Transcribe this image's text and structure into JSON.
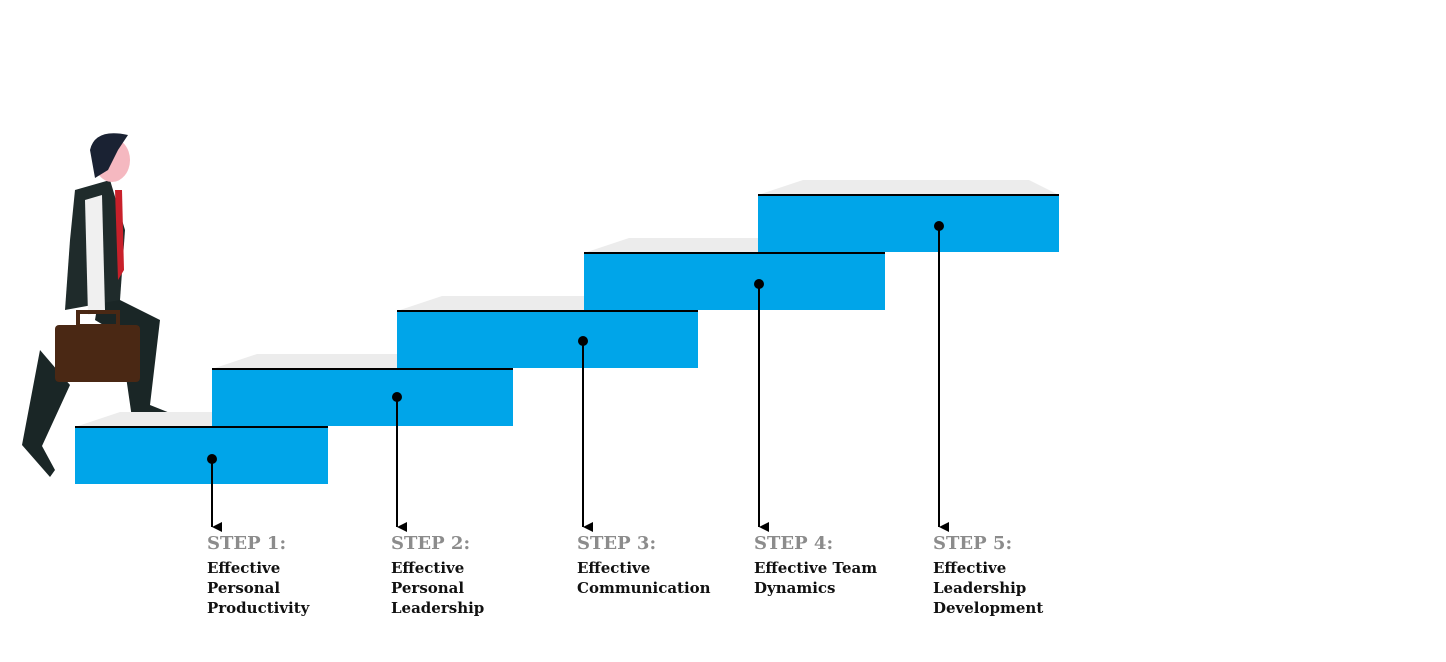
{
  "steps": [
    {
      "label": "STEP 1:",
      "lines": [
        "Effective",
        "Personal",
        "Productivity"
      ]
    },
    {
      "label": "STEP 2:",
      "lines": [
        "Effective",
        "Personal",
        "Leadership"
      ]
    },
    {
      "label": "STEP 3:",
      "lines": [
        "Effective",
        "Communication"
      ]
    },
    {
      "label": "STEP 4:",
      "lines": [
        "Effective Team",
        "Dynamics"
      ]
    },
    {
      "label": "STEP 5:",
      "lines": [
        "Effective",
        "Leadership",
        "Development"
      ]
    }
  ]
}
